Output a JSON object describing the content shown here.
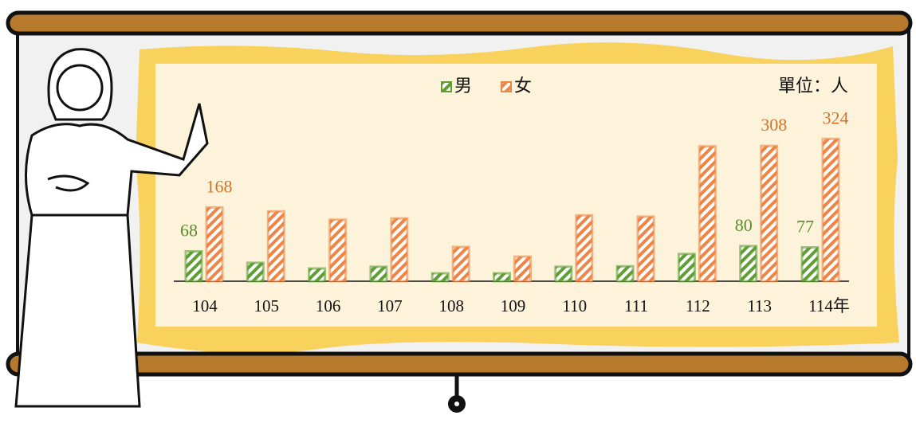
{
  "chart_data": {
    "type": "bar",
    "unit": "單位：人",
    "categories": [
      "104",
      "105",
      "106",
      "107",
      "108",
      "109",
      "110",
      "111",
      "112",
      "113",
      "114年"
    ],
    "series": [
      {
        "name": "男",
        "color": "#5f9e35",
        "values": [
          68,
          42,
          29,
          33,
          18,
          18,
          33,
          34,
          62,
          80,
          77
        ],
        "value_labels": [
          "68",
          null,
          null,
          null,
          null,
          null,
          null,
          null,
          null,
          "80",
          "77"
        ]
      },
      {
        "name": "女",
        "color": "#ee8544",
        "values": [
          168,
          159,
          140,
          143,
          78,
          56,
          150,
          147,
          307,
          308,
          324
        ],
        "value_labels": [
          "168",
          null,
          null,
          null,
          null,
          null,
          null,
          null,
          null,
          "308",
          "324"
        ]
      }
    ],
    "ylim": [
      0,
      350
    ]
  }
}
